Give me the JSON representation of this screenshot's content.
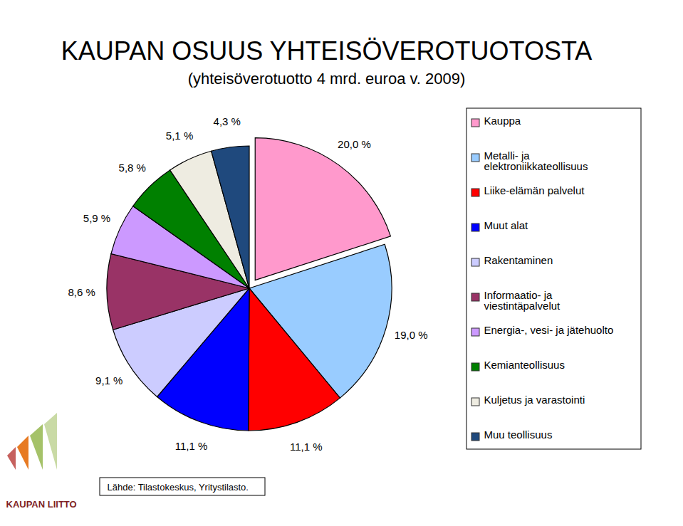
{
  "chart_data": {
    "type": "pie",
    "title": "KAUPAN OSUUS YHTEISÖVEROTUOTOSTA",
    "subtitle": "(yhteisöverotuotto 4 mrd. euroa v. 2009)",
    "categories": [
      "Kauppa",
      "Metalli- ja elektroniikkateollisuus",
      "Liike-elämän palvelut",
      "Muut alat",
      "Rakentaminen",
      "Informaatio- ja viestintäpalvelut",
      "Energia-, vesi- ja jätehuolto",
      "Kemianteollisuus",
      "Kuljetus ja varastointi",
      "Muu teollisuus"
    ],
    "values": [
      20.0,
      19.0,
      11.1,
      11.1,
      9.1,
      8.6,
      5.9,
      5.8,
      5.1,
      4.3
    ],
    "value_labels": [
      "20,0 %",
      "19,0 %",
      "11,1 %",
      "11,1 %",
      "9,1 %",
      "8,6 %",
      "5,9 %",
      "5,8 %",
      "5,1 %",
      "4,3 %"
    ],
    "colors": [
      "#ff99cc",
      "#99ccff",
      "#ff0000",
      "#0000ff",
      "#ccccff",
      "#993366",
      "#cc99ff",
      "#008000",
      "#eeece1",
      "#1f497d"
    ],
    "data_labels": true,
    "legend": "right",
    "caption": "Lähde: Tilastokeskus, Yritystilasto.",
    "annotations": [
      "KAUPAN LIITTO"
    ]
  }
}
